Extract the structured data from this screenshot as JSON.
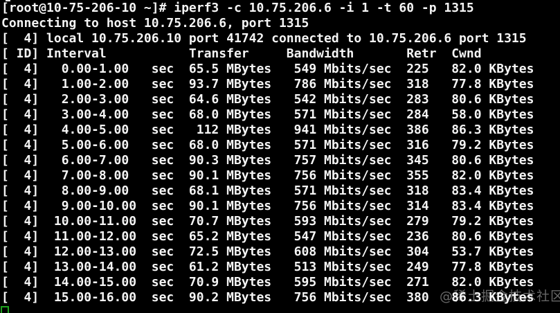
{
  "app": "terminal",
  "colors": {
    "background": "#000000",
    "foreground": "#f4f4f4",
    "cursor_green": "#1ea31e",
    "watermark_gray": "#9b9b9b"
  },
  "session": {
    "prompt_line": "[root@10-75-206-10 ~]# iperf3 -c 10.75.206.6 -i 1 -t 60 -p 1315",
    "connecting_line": "Connecting to host 10.75.206.6, port 1315",
    "connected_line": "[  4] local 10.75.206.10 port 41742 connected to 10.75.206.6 port 1315"
  },
  "iperf_table": {
    "header_line": "[ ID] Interval           Transfer     Bandwidth       Retr  Cwnd",
    "columns": [
      "ID",
      "Interval",
      "Transfer",
      "Bandwidth",
      "Retr",
      "Cwnd"
    ],
    "units": {
      "interval": "sec",
      "transfer": "MBytes",
      "bandwidth": "Mbits/sec",
      "cwnd": "KBytes"
    },
    "rows": [
      {
        "id": 4,
        "interval_start": 0,
        "interval_end": 1,
        "transfer_mbytes": "65.5",
        "bandwidth_mbits": "549",
        "retr": 225,
        "cwnd_kbytes": "82.0"
      },
      {
        "id": 4,
        "interval_start": 1,
        "interval_end": 2,
        "transfer_mbytes": "93.7",
        "bandwidth_mbits": "786",
        "retr": 318,
        "cwnd_kbytes": "77.8"
      },
      {
        "id": 4,
        "interval_start": 2,
        "interval_end": 3,
        "transfer_mbytes": "64.6",
        "bandwidth_mbits": "542",
        "retr": 283,
        "cwnd_kbytes": "80.6"
      },
      {
        "id": 4,
        "interval_start": 3,
        "interval_end": 4,
        "transfer_mbytes": "68.0",
        "bandwidth_mbits": "571",
        "retr": 284,
        "cwnd_kbytes": "58.0"
      },
      {
        "id": 4,
        "interval_start": 4,
        "interval_end": 5,
        "transfer_mbytes": "112",
        "bandwidth_mbits": "941",
        "retr": 386,
        "cwnd_kbytes": "86.3"
      },
      {
        "id": 4,
        "interval_start": 5,
        "interval_end": 6,
        "transfer_mbytes": "68.0",
        "bandwidth_mbits": "571",
        "retr": 316,
        "cwnd_kbytes": "79.2"
      },
      {
        "id": 4,
        "interval_start": 6,
        "interval_end": 7,
        "transfer_mbytes": "90.3",
        "bandwidth_mbits": "757",
        "retr": 345,
        "cwnd_kbytes": "80.6"
      },
      {
        "id": 4,
        "interval_start": 7,
        "interval_end": 8,
        "transfer_mbytes": "90.1",
        "bandwidth_mbits": "756",
        "retr": 355,
        "cwnd_kbytes": "82.0"
      },
      {
        "id": 4,
        "interval_start": 8,
        "interval_end": 9,
        "transfer_mbytes": "68.1",
        "bandwidth_mbits": "571",
        "retr": 318,
        "cwnd_kbytes": "83.4"
      },
      {
        "id": 4,
        "interval_start": 9,
        "interval_end": 10,
        "transfer_mbytes": "90.1",
        "bandwidth_mbits": "756",
        "retr": 314,
        "cwnd_kbytes": "83.4"
      },
      {
        "id": 4,
        "interval_start": 10,
        "interval_end": 11,
        "transfer_mbytes": "70.7",
        "bandwidth_mbits": "593",
        "retr": 279,
        "cwnd_kbytes": "79.2"
      },
      {
        "id": 4,
        "interval_start": 11,
        "interval_end": 12,
        "transfer_mbytes": "65.2",
        "bandwidth_mbits": "547",
        "retr": 236,
        "cwnd_kbytes": "80.6"
      },
      {
        "id": 4,
        "interval_start": 12,
        "interval_end": 13,
        "transfer_mbytes": "72.5",
        "bandwidth_mbits": "608",
        "retr": 304,
        "cwnd_kbytes": "53.7"
      },
      {
        "id": 4,
        "interval_start": 13,
        "interval_end": 14,
        "transfer_mbytes": "61.2",
        "bandwidth_mbits": "513",
        "retr": 249,
        "cwnd_kbytes": "77.8"
      },
      {
        "id": 4,
        "interval_start": 14,
        "interval_end": 15,
        "transfer_mbytes": "70.9",
        "bandwidth_mbits": "595",
        "retr": 271,
        "cwnd_kbytes": "82.0"
      },
      {
        "id": 4,
        "interval_start": 15,
        "interval_end": 16,
        "transfer_mbytes": "90.2",
        "bandwidth_mbits": "756",
        "retr": 380,
        "cwnd_kbytes": "86.3"
      }
    ]
  },
  "watermark": {
    "text": "@稀土掘金技术社区"
  }
}
